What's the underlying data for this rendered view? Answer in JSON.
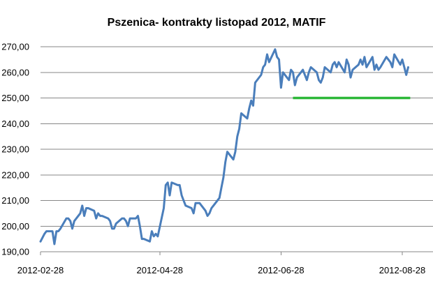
{
  "chart_data": {
    "type": "line",
    "title": "Pszenica- kontrakty listopad 2012, MATIF",
    "xlabel": "",
    "ylabel": "",
    "ylim": [
      190,
      270
    ],
    "y_ticks": [
      "190,00",
      "200,00",
      "210,00",
      "220,00",
      "230,00",
      "240,00",
      "250,00",
      "260,00",
      "270,00"
    ],
    "y_tick_values": [
      190,
      200,
      210,
      220,
      230,
      240,
      250,
      260,
      270
    ],
    "x_ticks": [
      "2012-02-28",
      "2012-04-28",
      "2012-06-28",
      "2012-08-28"
    ],
    "x_range": [
      "2012-02-28",
      "2012-09-01"
    ],
    "grid": true,
    "legend": "none",
    "series": [
      {
        "color": "#4a7ebb",
        "x": [
          "2012-02-28",
          "2012-03-01",
          "2012-03-02",
          "2012-03-05",
          "2012-03-06",
          "2012-03-07",
          "2012-03-08",
          "2012-03-09",
          "2012-03-12",
          "2012-03-13",
          "2012-03-14",
          "2012-03-15",
          "2012-03-16",
          "2012-03-19",
          "2012-03-20",
          "2012-03-21",
          "2012-03-22",
          "2012-03-23",
          "2012-03-26",
          "2012-03-27",
          "2012-03-28",
          "2012-03-29",
          "2012-03-30",
          "2012-04-02",
          "2012-04-03",
          "2012-04-04",
          "2012-04-05",
          "2012-04-06",
          "2012-04-09",
          "2012-04-10",
          "2012-04-11",
          "2012-04-12",
          "2012-04-13",
          "2012-04-16",
          "2012-04-17",
          "2012-04-18",
          "2012-04-19",
          "2012-04-20",
          "2012-04-23",
          "2012-04-24",
          "2012-04-25",
          "2012-04-26",
          "2012-04-27",
          "2012-04-30",
          "2012-05-01",
          "2012-05-02",
          "2012-05-03",
          "2012-05-04",
          "2012-05-07",
          "2012-05-08",
          "2012-05-09",
          "2012-05-10",
          "2012-05-11",
          "2012-05-14",
          "2012-05-15",
          "2012-05-16",
          "2012-05-17",
          "2012-05-18",
          "2012-05-21",
          "2012-05-22",
          "2012-05-23",
          "2012-05-24",
          "2012-05-25",
          "2012-05-28",
          "2012-05-29",
          "2012-05-30",
          "2012-05-31",
          "2012-06-01",
          "2012-06-04",
          "2012-06-05",
          "2012-06-06",
          "2012-06-07",
          "2012-06-08",
          "2012-06-11",
          "2012-06-12",
          "2012-06-13",
          "2012-06-14",
          "2012-06-15",
          "2012-06-18",
          "2012-06-19",
          "2012-06-20",
          "2012-06-21",
          "2012-06-22",
          "2012-06-25",
          "2012-06-26",
          "2012-06-27",
          "2012-06-28",
          "2012-06-29",
          "2012-07-02",
          "2012-07-03",
          "2012-07-04",
          "2012-07-05",
          "2012-07-06",
          "2012-07-09",
          "2012-07-10",
          "2012-07-11",
          "2012-07-12",
          "2012-07-13",
          "2012-07-16",
          "2012-07-17",
          "2012-07-18",
          "2012-07-19",
          "2012-07-20",
          "2012-07-23",
          "2012-07-24",
          "2012-07-25",
          "2012-07-26",
          "2012-07-27",
          "2012-07-30",
          "2012-07-31",
          "2012-08-01",
          "2012-08-02",
          "2012-08-03",
          "2012-08-06",
          "2012-08-07",
          "2012-08-08",
          "2012-08-09",
          "2012-08-10",
          "2012-08-13",
          "2012-08-14",
          "2012-08-15",
          "2012-08-16",
          "2012-08-17",
          "2012-08-20",
          "2012-08-21",
          "2012-08-22",
          "2012-08-23",
          "2012-08-24",
          "2012-08-27",
          "2012-08-28",
          "2012-08-29",
          "2012-08-30",
          "2012-08-31"
        ],
        "y": [
          194,
          197,
          198,
          198,
          193,
          198,
          198,
          199,
          203,
          203,
          202,
          199,
          202,
          205,
          208,
          204,
          207,
          207,
          206,
          203,
          205,
          204,
          204,
          203,
          202,
          199,
          199,
          201,
          203,
          203,
          202,
          200,
          203,
          203,
          204,
          200,
          195,
          195,
          194,
          198,
          196,
          197,
          196,
          207,
          216,
          217,
          212,
          217,
          216,
          216,
          212,
          210,
          208,
          207,
          205,
          209,
          209,
          209,
          206,
          204,
          205,
          207,
          208,
          211,
          215,
          219,
          225,
          229,
          226,
          229,
          235,
          238,
          244,
          242,
          246,
          249,
          247,
          256,
          259,
          262,
          263,
          267,
          264,
          269,
          266,
          265,
          254,
          260,
          257,
          261,
          260,
          255,
          258,
          261,
          259,
          257,
          260,
          262,
          260,
          257,
          256,
          258,
          262,
          260,
          263,
          264,
          262,
          264,
          260,
          265,
          263,
          258,
          261,
          263,
          265,
          263,
          266,
          262,
          266,
          261,
          263,
          261,
          262,
          266,
          265,
          264,
          262,
          267,
          263,
          265,
          262,
          259,
          262
        ],
        "x_index_start": 0
      }
    ],
    "reference_lines": [
      {
        "color": "#2db839",
        "y": 250,
        "x_start": "2012-07-04",
        "x_end": "2012-09-01"
      }
    ]
  }
}
